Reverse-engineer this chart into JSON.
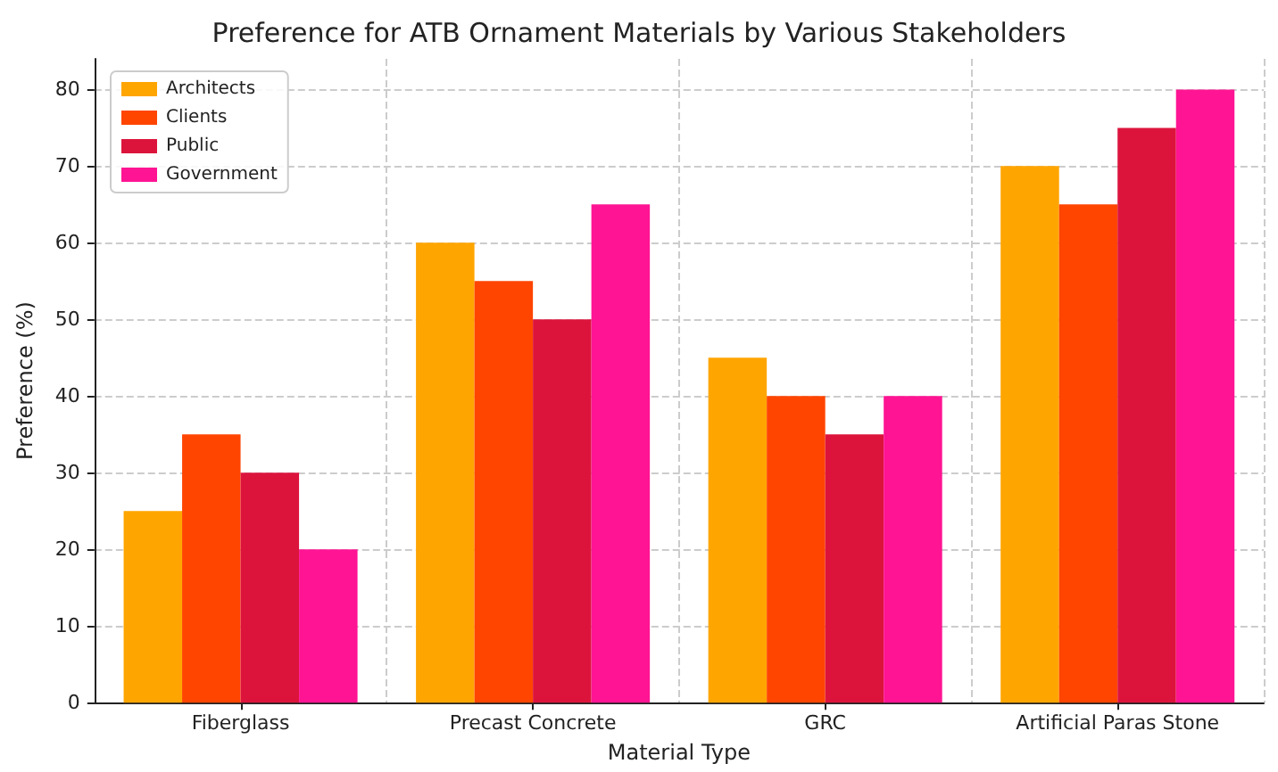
{
  "chart_data": {
    "type": "bar",
    "title": "Preference for ATB Ornament Materials by Various Stakeholders",
    "xlabel": "Material Type",
    "ylabel": "Preference (%)",
    "categories": [
      "Fiberglass",
      "Precast Concrete",
      "GRC",
      "Artificial Paras Stone"
    ],
    "series": [
      {
        "name": "Architects",
        "color": "#ffa500",
        "values": [
          25,
          60,
          45,
          70
        ]
      },
      {
        "name": "Clients",
        "color": "#ff4500",
        "values": [
          35,
          55,
          40,
          65
        ]
      },
      {
        "name": "Public",
        "color": "#dc143c",
        "values": [
          30,
          50,
          35,
          75
        ]
      },
      {
        "name": "Government",
        "color": "#ff1493",
        "values": [
          20,
          65,
          40,
          80
        ]
      }
    ],
    "ylim": [
      0,
      84
    ],
    "yticks": [
      0,
      10,
      20,
      30,
      40,
      50,
      60,
      70,
      80
    ],
    "grid": true,
    "legend": "top left"
  }
}
